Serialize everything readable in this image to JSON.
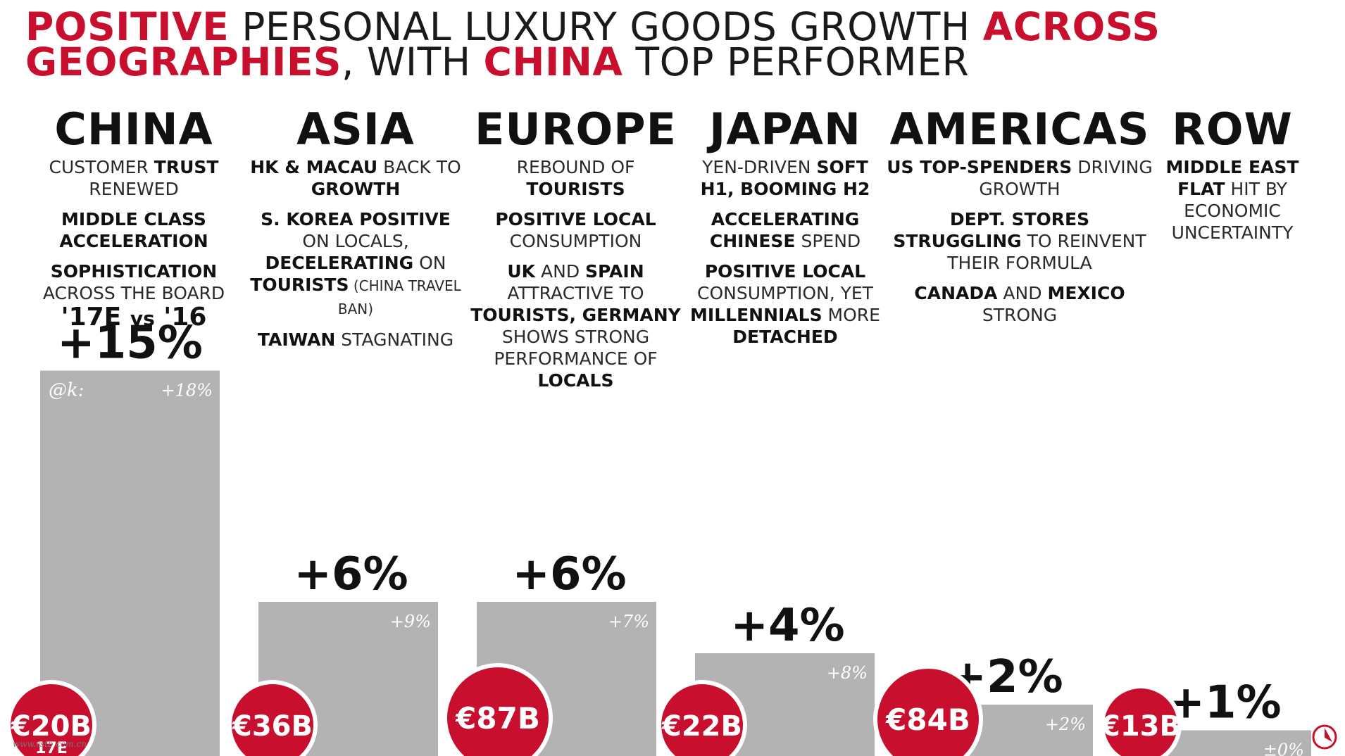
{
  "title": {
    "line1": [
      {
        "text": "POSITIVE",
        "highlight": true
      },
      {
        "text": " PERSONAL LUXURY GOODS GROWTH ",
        "highlight": false
      },
      {
        "text": "ACROSS",
        "highlight": true
      }
    ],
    "line2": [
      {
        "text": "GEOGRAPHIES",
        "highlight": true
      },
      {
        "text": ", WITH ",
        "highlight": false
      },
      {
        "text": "CHINA",
        "highlight": true
      },
      {
        "text": " TOP PERFORMER",
        "highlight": false
      }
    ]
  },
  "comparison": {
    "year_a": "'17E",
    "vs": "vs",
    "year_b": "'16"
  },
  "regions": [
    {
      "header": "CHINA",
      "paragraphs": [
        [
          {
            "t": "CUSTOMER ",
            "b": false
          },
          {
            "t": "TRUST",
            "b": true
          },
          {
            "t": " RENEWED",
            "b": false
          }
        ],
        [
          {
            "t": "MIDDLE CLASS ACCELERATION",
            "b": true
          }
        ],
        [
          {
            "t": "SOPHISTICATION",
            "b": true
          },
          {
            "t": " ACROSS THE BOARD",
            "b": false
          }
        ]
      ]
    },
    {
      "header": "ASIA",
      "paragraphs": [
        [
          {
            "t": "HK & MACAU",
            "b": true
          },
          {
            "t": " BACK TO ",
            "b": false
          },
          {
            "t": "GROWTH",
            "b": true
          }
        ],
        [
          {
            "t": "S. KOREA POSITIVE",
            "b": true
          },
          {
            "t": " ON LOCALS, ",
            "b": false
          },
          {
            "t": "DECELERATING",
            "b": true
          },
          {
            "t": " ON ",
            "b": false
          },
          {
            "t": "TOURISTS",
            "b": true
          },
          {
            "t": " (CHINA TRAVEL BAN)",
            "b": false,
            "small": true
          }
        ],
        [
          {
            "t": "TAIWAN",
            "b": true
          },
          {
            "t": " STAGNATING",
            "b": false
          }
        ]
      ]
    },
    {
      "header": "EUROPE",
      "paragraphs": [
        [
          {
            "t": "REBOUND OF ",
            "b": false
          },
          {
            "t": "TOURISTS",
            "b": true
          }
        ],
        [
          {
            "t": "POSITIVE LOCAL",
            "b": true
          },
          {
            "t": " CONSUMPTION",
            "b": false
          }
        ],
        [
          {
            "t": "UK",
            "b": true
          },
          {
            "t": " AND ",
            "b": false
          },
          {
            "t": "SPAIN",
            "b": true
          },
          {
            "t": " ATTRACTIVE TO ",
            "b": false
          },
          {
            "t": "TOURISTS, GERMANY",
            "b": true
          },
          {
            "t": " SHOWS STRONG PERFORMANCE OF ",
            "b": false
          },
          {
            "t": "LOCALS",
            "b": true
          }
        ]
      ]
    },
    {
      "header": "JAPAN",
      "paragraphs": [
        [
          {
            "t": "YEN-DRIVEN ",
            "b": false
          },
          {
            "t": "SOFT H1, BOOMING H2",
            "b": true
          }
        ],
        [
          {
            "t": "ACCELERATING CHINESE",
            "b": true
          },
          {
            "t": " SPEND",
            "b": false
          }
        ],
        [
          {
            "t": "POSITIVE LOCAL",
            "b": true
          },
          {
            "t": " CONSUMPTION, YET ",
            "b": false
          },
          {
            "t": "MILLENNIALS",
            "b": true
          },
          {
            "t": " MORE ",
            "b": false
          },
          {
            "t": "DETACHED",
            "b": true
          }
        ]
      ]
    },
    {
      "header": "AMERICAS",
      "paragraphs": [
        [
          {
            "t": "US TOP-SPENDERS",
            "b": true
          },
          {
            "t": " DRIVING GROWTH",
            "b": false
          }
        ],
        [
          {
            "t": "DEPT. STORES STRUGGLING",
            "b": true
          },
          {
            "t": " TO REINVENT THEIR FORMULA",
            "b": false
          }
        ],
        [
          {
            "t": "CANADA",
            "b": true
          },
          {
            "t": " AND ",
            "b": false
          },
          {
            "t": "MEXICO",
            "b": true
          },
          {
            "t": " STRONG",
            "b": false
          }
        ]
      ]
    },
    {
      "header": "ROW",
      "paragraphs": [
        [
          {
            "t": "MIDDLE EAST FLAT",
            "b": true
          },
          {
            "t": " HIT BY ECONOMIC UNCERTAINTY",
            "b": false
          }
        ]
      ]
    }
  ],
  "chart_data": {
    "type": "bar",
    "categories": [
      "CHINA",
      "ASIA",
      "EUROPE",
      "JAPAN",
      "AMERICAS",
      "ROW"
    ],
    "values": [
      15,
      6,
      6,
      4,
      2,
      1
    ],
    "value_labels": [
      "+15%",
      "+6%",
      "+6%",
      "+4%",
      "+2%",
      "+1%"
    ],
    "inner_labels": [
      "+18%",
      "+9%",
      "+7%",
      "+8%",
      "+2%",
      "±0%"
    ],
    "market_size_labels": [
      "€20B",
      "€36B",
      "€87B",
      "€22B",
      "€84B",
      "€13B"
    ],
    "china_bar_note": "@k:",
    "china_circle_sub": "17E",
    "colors": {
      "bar": "#b3b3b3",
      "circle": "#c8102e",
      "accent": "#c8102e"
    }
  },
  "watermark": "www.rstb.com.cn"
}
